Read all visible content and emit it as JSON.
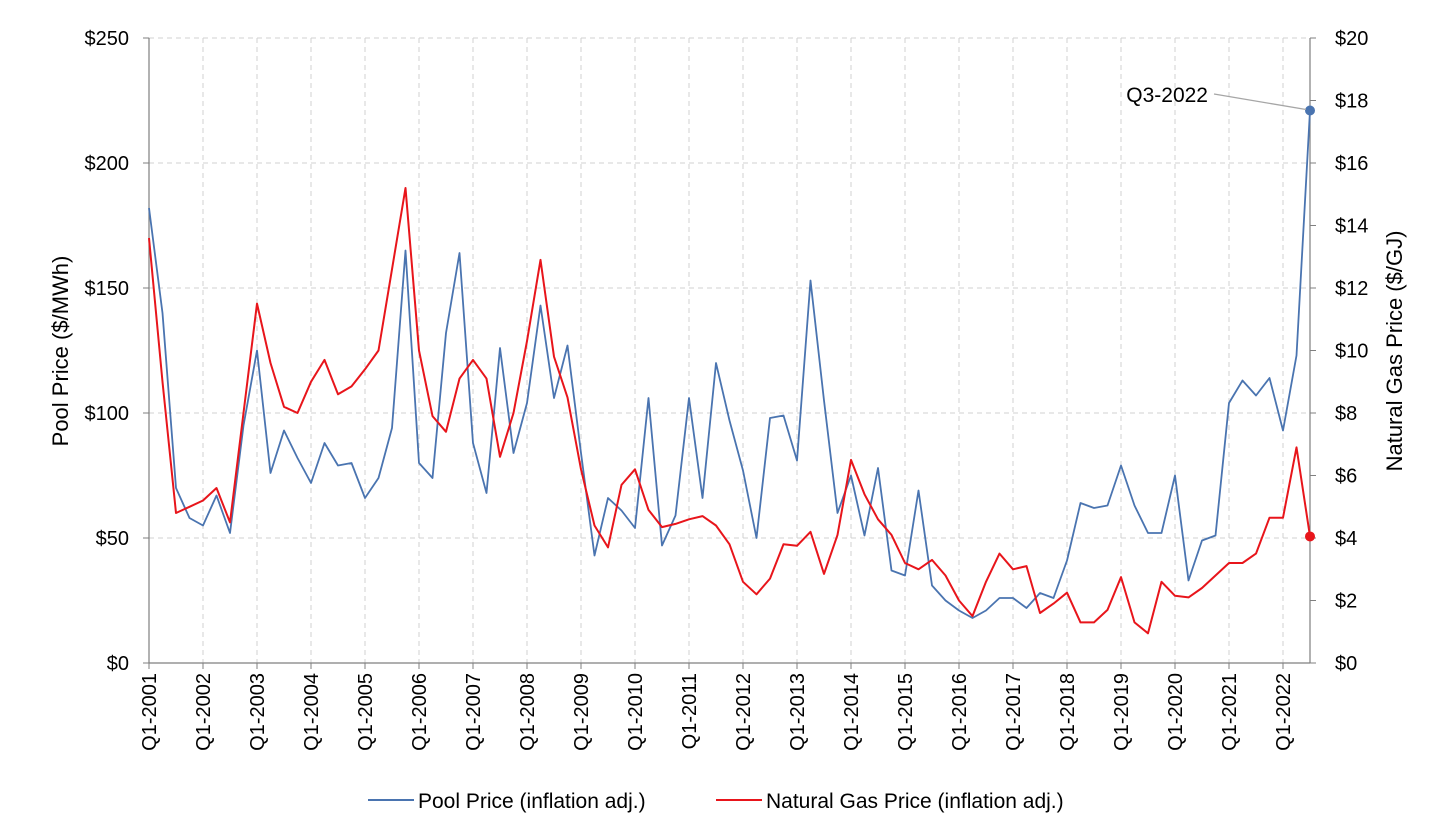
{
  "chart_data": {
    "type": "line",
    "title": "",
    "xlabel": "",
    "ylabel_left": "Pool Price ($/MWh)",
    "ylabel_right": "Natural Gas Price ($/GJ)",
    "ylim_left": [
      0,
      250
    ],
    "ylim_right": [
      0,
      20
    ],
    "left_ticks": [
      0,
      50,
      100,
      150,
      200,
      250
    ],
    "left_tick_labels": [
      "$0",
      "$50",
      "$100",
      "$150",
      "$200",
      "$250"
    ],
    "right_ticks": [
      0,
      2,
      4,
      6,
      8,
      10,
      12,
      14,
      16,
      18,
      20
    ],
    "right_tick_labels": [
      "$0",
      "$2",
      "$4",
      "$6",
      "$8",
      "$10",
      "$12",
      "$14",
      "$16",
      "$18",
      "$20"
    ],
    "x_tick_labels": [
      "Q1-2001",
      "Q1-2002",
      "Q1-2003",
      "Q1-2004",
      "Q1-2005",
      "Q1-2006",
      "Q1-2007",
      "Q1-2008",
      "Q1-2009",
      "Q1-2010",
      "Q1-2011",
      "Q1-2012",
      "Q1-2013",
      "Q1-2014",
      "Q1-2015",
      "Q1-2016",
      "Q1-2017",
      "Q1-2018",
      "Q1-2019",
      "Q1-2020",
      "Q1-2021",
      "Q1-2022"
    ],
    "grid": true,
    "legend_position": "bottom",
    "series": [
      {
        "name": "Pool Price (inflation adj.)",
        "axis": "left",
        "color": "#4a74b0",
        "values": [
          182,
          140,
          70,
          58,
          55,
          67,
          52,
          95,
          125,
          76,
          93,
          82,
          72,
          88,
          79,
          80,
          66,
          74,
          94,
          165,
          80,
          74,
          132,
          164,
          88,
          68,
          126,
          84,
          104,
          143,
          106,
          127,
          84,
          43,
          66,
          61,
          54,
          106,
          47,
          59,
          106,
          66,
          120,
          97,
          77,
          50,
          98,
          99,
          81,
          153,
          105,
          60,
          75,
          51,
          78,
          37,
          35,
          69,
          31,
          25,
          21,
          18,
          21,
          26,
          26,
          22,
          28,
          26,
          41,
          64,
          62,
          63,
          79,
          63,
          52,
          52,
          75,
          33,
          49,
          51,
          104,
          113,
          107,
          114,
          93,
          123,
          221
        ]
      },
      {
        "name": "Natural Gas Price (inflation adj.)",
        "axis": "right",
        "color": "#e8151b",
        "values": [
          13.6,
          9.0,
          4.8,
          5.0,
          5.2,
          5.6,
          4.5,
          8.0,
          11.5,
          9.6,
          8.2,
          8.0,
          9.0,
          9.7,
          8.6,
          8.85,
          9.4,
          10.0,
          12.6,
          15.2,
          10.0,
          7.9,
          7.4,
          9.1,
          9.7,
          9.1,
          6.6,
          8.0,
          10.3,
          12.9,
          9.8,
          8.5,
          6.2,
          4.4,
          3.7,
          5.7,
          6.2,
          4.9,
          4.35,
          4.45,
          4.6,
          4.7,
          4.4,
          3.8,
          2.6,
          2.2,
          2.7,
          3.8,
          3.75,
          4.2,
          2.85,
          4.1,
          6.5,
          5.4,
          4.6,
          4.1,
          3.2,
          3.0,
          3.3,
          2.8,
          2.0,
          1.5,
          2.6,
          3.5,
          3.0,
          3.1,
          1.6,
          1.9,
          2.25,
          1.3,
          1.3,
          1.7,
          2.75,
          1.3,
          0.95,
          2.6,
          2.15,
          2.1,
          2.4,
          2.8,
          3.2,
          3.2,
          3.5,
          4.65,
          4.65,
          6.9,
          4.05
        ]
      }
    ],
    "annotations": [
      {
        "text": "Q3-2022",
        "series": 0,
        "index": 86,
        "value": 221
      }
    ]
  }
}
